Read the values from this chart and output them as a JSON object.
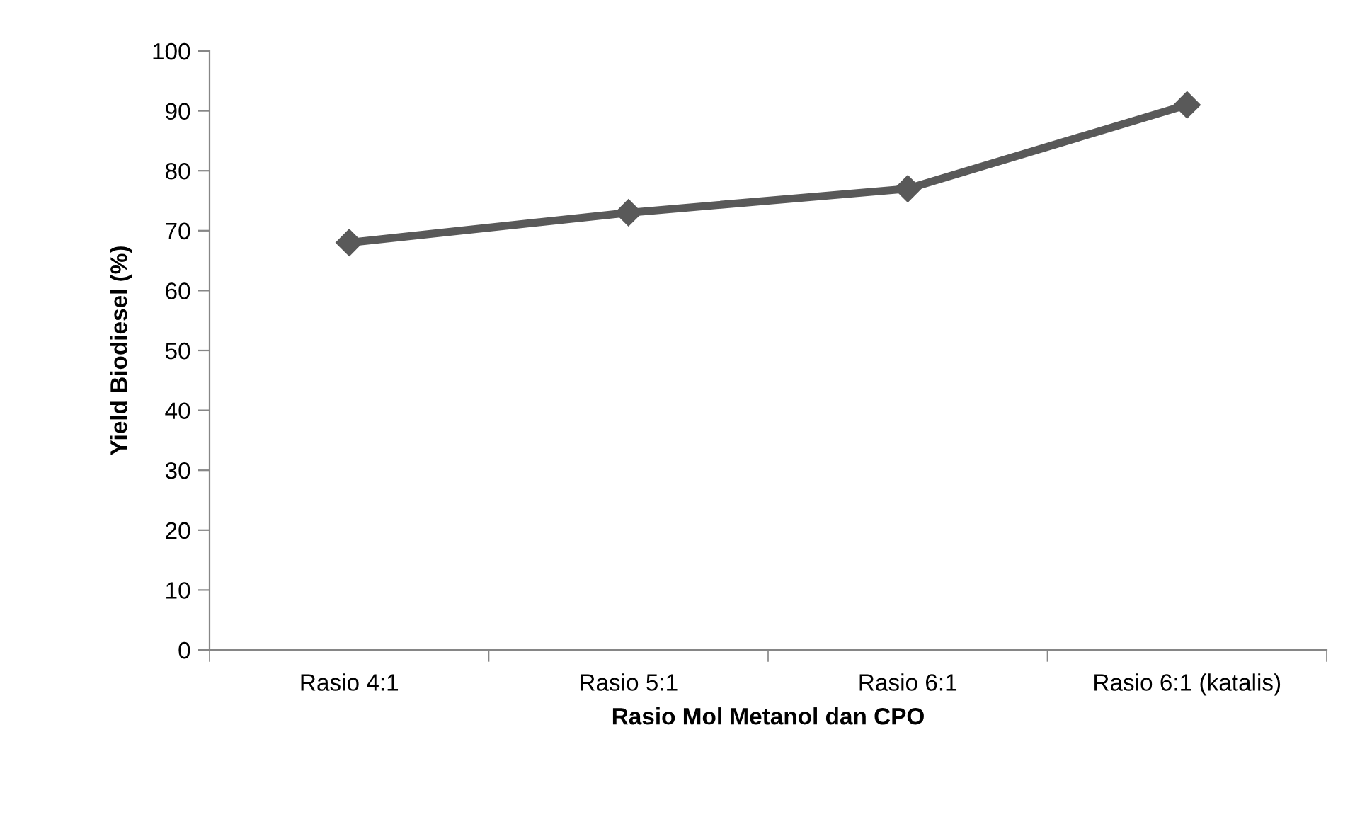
{
  "chart_data": {
    "type": "line",
    "xlabel": "Rasio Mol Metanol dan CPO",
    "ylabel": "Yield Biodiesel (%)",
    "categories": [
      "Rasio 4:1",
      "Rasio 5:1",
      "Rasio 6:1",
      "Rasio 6:1 (katalis)"
    ],
    "series": [
      {
        "color": "#595959",
        "values": [
          68,
          73,
          77,
          91
        ]
      }
    ],
    "ylim": [
      0,
      100
    ],
    "yticks": [
      0,
      10,
      20,
      30,
      40,
      50,
      60,
      70,
      80,
      90,
      100
    ],
    "marker": "diamond",
    "line_style": "solid",
    "grid": false,
    "legend": false
  }
}
